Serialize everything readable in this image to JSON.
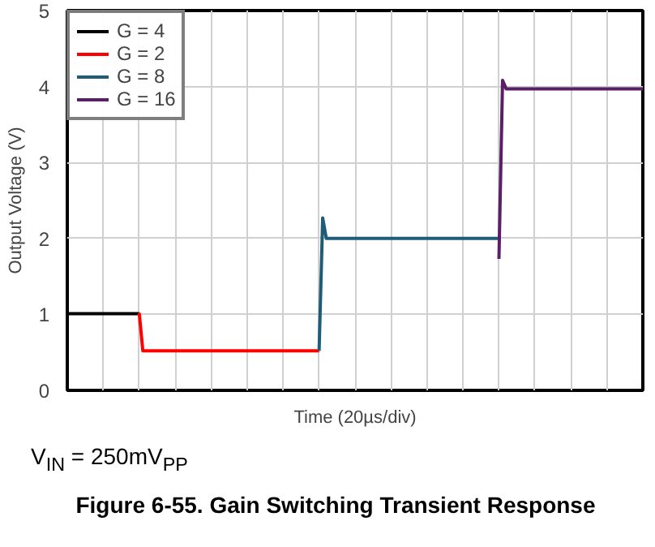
{
  "chart_data": {
    "type": "line",
    "title": "Figure 6-55. Gain Switching Transient Response",
    "xlabel": "Time (20µs/div)",
    "ylabel": "Output Voltage (V)",
    "annotations": [
      "V$_{IN}$ = 250mV$_{PP}$"
    ],
    "categories": [
      null,
      null,
      null,
      null,
      null,
      null,
      null,
      null,
      null,
      null,
      null,
      null,
      null,
      null,
      null,
      null,
      null,
      null,
      null,
      null,
      null,
      null,
      null,
      null,
      null,
      null,
      null,
      null,
      null,
      null,
      null,
      null,
      null,
      null,
      null,
      null,
      null,
      null,
      null,
      null,
      null,
      null,
      null,
      null,
      null,
      null,
      null,
      null,
      null,
      null,
      null,
      null,
      null,
      null,
      null,
      null,
      null,
      null,
      null,
      null,
      null,
      null,
      null,
      null,
      null,
      null,
      null,
      null,
      null,
      null,
      null,
      null,
      null,
      null,
      null,
      null,
      null,
      null,
      null,
      null,
      null,
      null,
      null,
      null,
      null,
      null,
      null,
      null,
      null,
      null,
      null,
      null,
      null,
      null,
      null,
      null,
      null,
      null,
      null,
      null,
      null,
      null,
      null,
      null,
      null,
      null,
      null,
      null,
      null,
      null,
      null,
      null,
      null,
      null,
      null,
      null,
      null,
      null,
      null,
      null,
      null,
      null,
      null,
      null,
      null,
      null,
      null,
      null,
      null,
      null,
      null,
      null,
      null,
      null,
      null,
      null,
      null,
      null,
      null,
      null,
      null,
      null,
      null,
      null,
      null,
      null,
      null,
      null,
      null,
      null,
      null,
      null,
      null,
      null,
      null,
      null,
      null,
      null,
      null,
      null,
      null
    ],
    "ylim": [
      0,
      5
    ],
    "yticks": [
      0,
      1,
      2,
      3,
      4,
      5
    ],
    "grid": true,
    "legend": "top left",
    "line_style": "solid",
    "series": [
      {
        "name": "G = 4",
        "color": "#000000",
        "values": [
          1.01,
          1.01,
          1.01,
          1.01,
          1.01,
          1.01,
          1.01,
          1.01,
          1.01,
          1.01,
          1.01,
          1.01,
          1.01,
          1.01,
          1.01,
          1.01,
          1.01,
          1.01,
          1.01,
          1.01,
          1.01,
          null,
          null,
          null,
          null,
          null,
          null,
          null,
          null,
          null,
          null,
          null,
          null,
          null,
          null,
          null,
          null,
          null,
          null,
          null,
          null,
          null,
          null,
          null,
          null,
          null,
          null,
          null,
          null,
          null,
          null,
          null,
          null,
          null,
          null,
          null,
          null,
          null,
          null,
          null,
          null,
          null,
          null,
          null,
          null,
          null,
          null,
          null,
          null,
          null,
          null,
          null,
          null,
          null,
          null,
          null,
          null,
          null,
          null,
          null,
          null,
          null,
          null,
          null,
          null,
          null,
          null,
          null,
          null,
          null,
          null,
          null,
          null,
          null,
          null,
          null,
          null,
          null,
          null,
          null,
          null,
          null,
          null,
          null,
          null,
          null,
          null,
          null,
          null,
          null,
          null,
          null,
          null,
          null,
          null,
          null,
          null,
          null,
          null,
          null,
          null,
          null,
          null,
          null,
          null,
          null,
          null,
          null,
          null,
          null,
          null,
          null,
          null,
          null,
          null,
          null,
          null,
          null,
          null,
          null,
          null,
          null,
          null,
          null,
          null,
          null,
          null,
          null,
          null,
          null,
          null,
          null,
          null,
          null,
          null,
          null,
          null,
          null,
          null,
          null,
          null
        ]
      },
      {
        "name": "G = 2",
        "color": "#ff0000",
        "values": [
          null,
          null,
          null,
          null,
          null,
          null,
          null,
          null,
          null,
          null,
          null,
          null,
          null,
          null,
          null,
          null,
          null,
          null,
          null,
          null,
          1.02,
          0.52,
          0.52,
          0.52,
          0.52,
          0.52,
          0.52,
          0.52,
          0.52,
          0.52,
          0.52,
          0.52,
          0.52,
          0.52,
          0.52,
          0.52,
          0.52,
          0.52,
          0.52,
          0.52,
          0.52,
          0.52,
          0.52,
          0.52,
          0.52,
          0.52,
          0.52,
          0.52,
          0.52,
          0.52,
          0.52,
          0.52,
          0.52,
          0.52,
          0.52,
          0.52,
          0.52,
          0.52,
          0.52,
          0.52,
          0.52,
          0.52,
          0.52,
          0.52,
          0.52,
          0.52,
          0.52,
          0.52,
          0.52,
          0.52,
          0.52,
          null,
          null,
          null,
          null,
          null,
          null,
          null,
          null,
          null,
          null,
          null,
          null,
          null,
          null,
          null,
          null,
          null,
          null,
          null,
          null,
          null,
          null,
          null,
          null,
          null,
          null,
          null,
          null,
          null,
          null,
          null,
          null,
          null,
          null,
          null,
          null,
          null,
          null,
          null,
          null,
          null,
          null,
          null,
          null,
          null,
          null,
          null,
          null,
          null,
          null,
          null,
          null,
          null,
          null,
          null,
          null,
          null,
          null,
          null,
          null,
          null,
          null,
          null,
          null,
          null,
          null,
          null,
          null,
          null,
          null,
          null,
          null,
          null,
          null,
          null,
          null,
          null,
          null,
          null,
          null,
          null,
          null,
          null,
          null,
          null,
          null,
          null,
          null,
          null,
          null
        ]
      },
      {
        "name": "G = 8",
        "color": "#1f5c78",
        "values": [
          null,
          null,
          null,
          null,
          null,
          null,
          null,
          null,
          null,
          null,
          null,
          null,
          null,
          null,
          null,
          null,
          null,
          null,
          null,
          null,
          null,
          null,
          null,
          null,
          null,
          null,
          null,
          null,
          null,
          null,
          null,
          null,
          null,
          null,
          null,
          null,
          null,
          null,
          null,
          null,
          null,
          null,
          null,
          null,
          null,
          null,
          null,
          null,
          null,
          null,
          null,
          null,
          null,
          null,
          null,
          null,
          null,
          null,
          null,
          null,
          null,
          null,
          null,
          null,
          null,
          null,
          null,
          null,
          null,
          null,
          0.52,
          2.27,
          2.0,
          2.0,
          2.0,
          2.0,
          2.0,
          2.0,
          2.0,
          2.0,
          2.0,
          2.0,
          2.0,
          2.0,
          2.0,
          2.0,
          2.0,
          2.0,
          2.0,
          2.0,
          2.0,
          2.0,
          2.0,
          2.0,
          2.0,
          2.0,
          2.0,
          2.0,
          2.0,
          2.0,
          2.0,
          2.0,
          2.0,
          2.0,
          2.0,
          2.0,
          2.0,
          2.0,
          2.0,
          2.0,
          2.0,
          2.0,
          2.0,
          2.0,
          2.0,
          2.0,
          2.0,
          2.0,
          2.0,
          2.0,
          2.0,
          null,
          null,
          null,
          null,
          null,
          null,
          null,
          null,
          null,
          null,
          null,
          null,
          null,
          null,
          null,
          null,
          null,
          null,
          null,
          null,
          null,
          null,
          null,
          null,
          null,
          null,
          null,
          null,
          null,
          null,
          null,
          null,
          null,
          null,
          null,
          null,
          null,
          null,
          null,
          null
        ]
      },
      {
        "name": "G = 16",
        "color": "#5a1f66",
        "values": [
          null,
          null,
          null,
          null,
          null,
          null,
          null,
          null,
          null,
          null,
          null,
          null,
          null,
          null,
          null,
          null,
          null,
          null,
          null,
          null,
          null,
          null,
          null,
          null,
          null,
          null,
          null,
          null,
          null,
          null,
          null,
          null,
          null,
          null,
          null,
          null,
          null,
          null,
          null,
          null,
          null,
          null,
          null,
          null,
          null,
          null,
          null,
          null,
          null,
          null,
          null,
          null,
          null,
          null,
          null,
          null,
          null,
          null,
          null,
          null,
          null,
          null,
          null,
          null,
          null,
          null,
          null,
          null,
          null,
          null,
          null,
          null,
          null,
          null,
          null,
          null,
          null,
          null,
          null,
          null,
          null,
          null,
          null,
          null,
          null,
          null,
          null,
          null,
          null,
          null,
          null,
          null,
          null,
          null,
          null,
          null,
          null,
          null,
          null,
          null,
          null,
          null,
          null,
          null,
          null,
          null,
          null,
          null,
          null,
          null,
          null,
          null,
          null,
          null,
          null,
          null,
          null,
          null,
          null,
          null,
          1.73,
          4.08,
          3.97,
          3.97,
          3.97,
          3.97,
          3.97,
          3.97,
          3.97,
          3.97,
          3.97,
          3.97,
          3.97,
          3.97,
          3.97,
          3.97,
          3.97,
          3.97,
          3.97,
          3.97,
          3.97,
          3.97,
          3.97,
          3.97,
          3.97,
          3.97,
          3.97,
          3.97,
          3.97,
          3.97,
          3.97,
          3.97,
          3.97,
          3.97,
          3.97,
          3.97,
          3.97,
          3.97,
          3.97,
          3.97,
          3.97
        ]
      }
    ]
  }
}
